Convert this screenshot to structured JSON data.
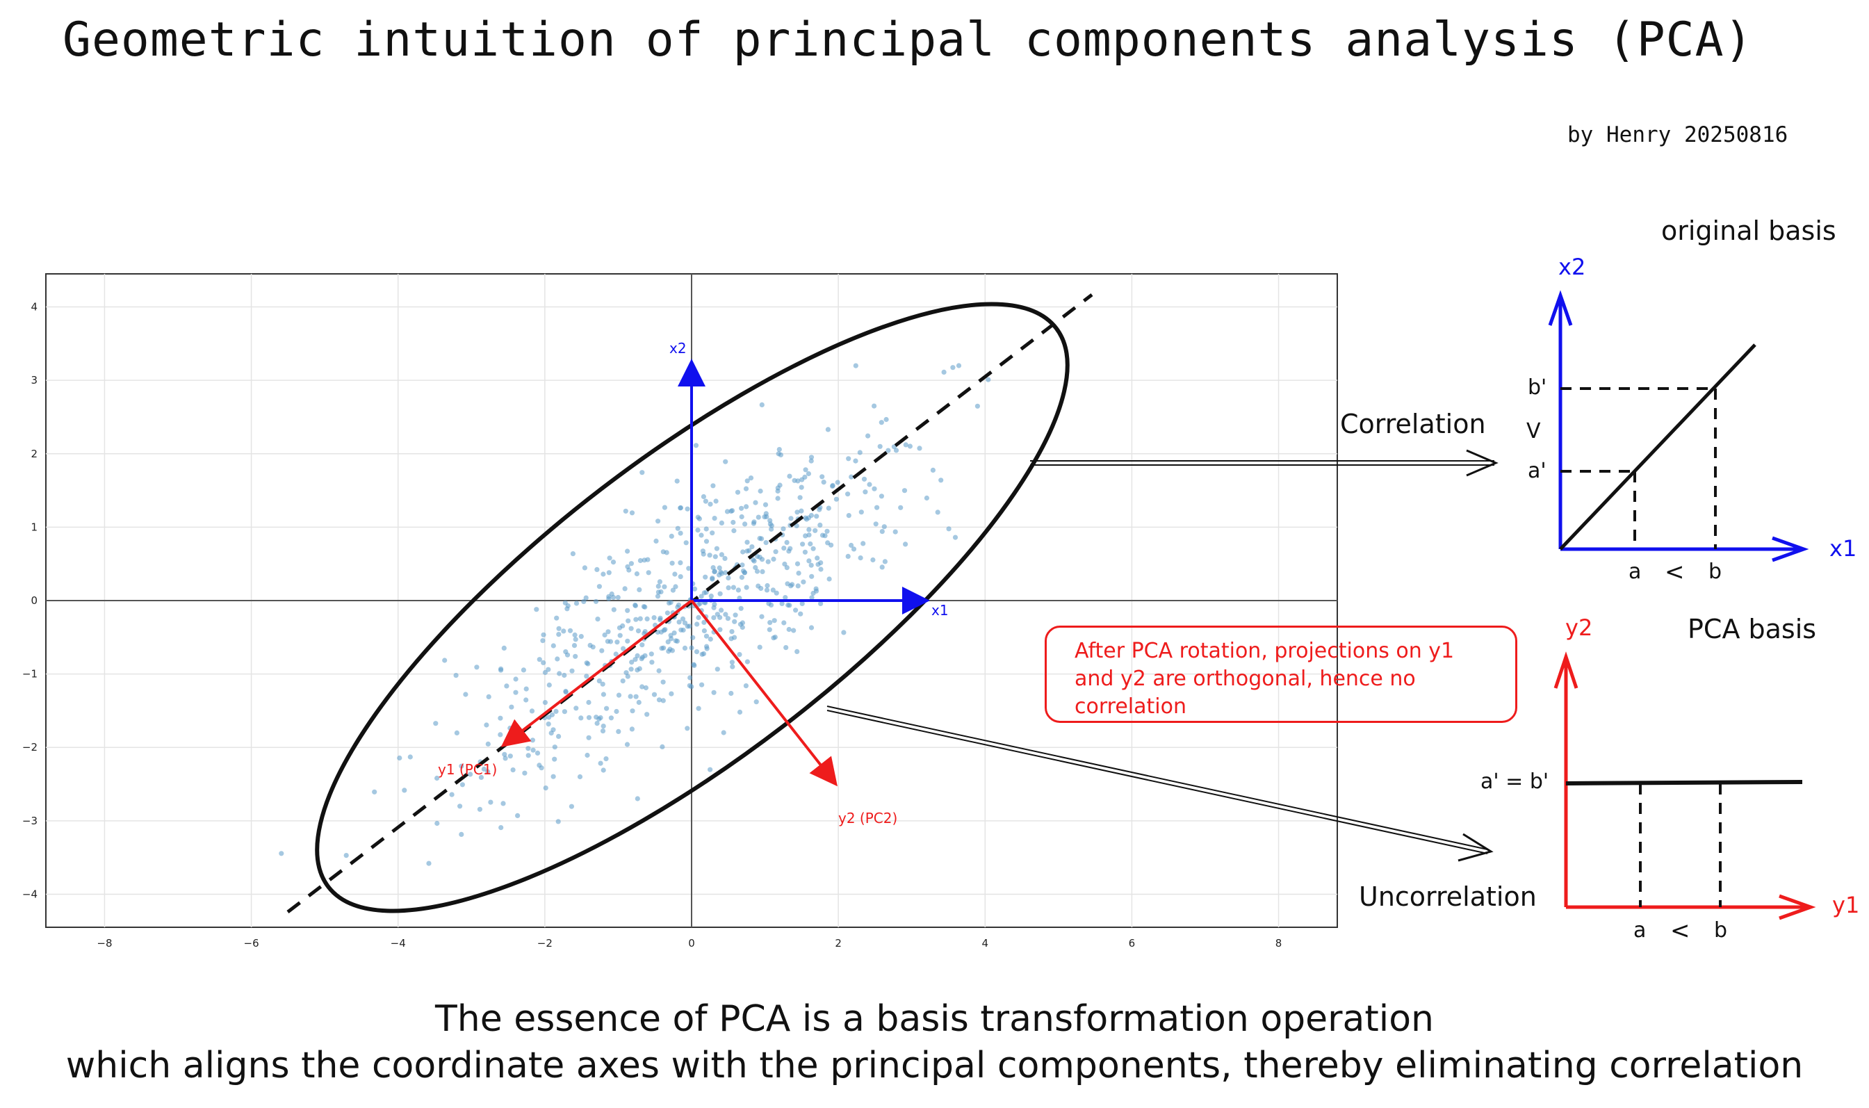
{
  "header": {
    "title": "Geometric intuition of principal components analysis (PCA)",
    "author": "by Henry 20250816"
  },
  "scatter": {
    "x_ticks": [
      "−8",
      "−6",
      "−4",
      "−2",
      "0",
      "2",
      "4",
      "6",
      "8"
    ],
    "y_ticks": [
      "4",
      "3",
      "2",
      "1",
      "0",
      "−1",
      "−2",
      "−3",
      "−4"
    ],
    "xlim": [
      -8.8,
      8.8
    ],
    "ylim": [
      -4.45,
      4.45
    ],
    "grid": true,
    "x1_label": "x1",
    "x2_label": "x2",
    "y1_label": "y1 (PC1)",
    "y2_label": "y2 (PC2)",
    "point_color": "#5b9ac9",
    "basis_color": "#1010ee",
    "pc_color": "#ee1c1c"
  },
  "annotations": {
    "correlation": "Correlation",
    "uncorrelation": "Uncorrelation",
    "note": "After PCA rotation, projections on y1 and y2 are orthogonal, hence no correlation"
  },
  "original_basis": {
    "title": "original basis",
    "x_axis": "x1",
    "y_axis": "x2",
    "a": "a",
    "b": "b",
    "a_prime": "a'",
    "b_prime": "b'",
    "lt": "<",
    "vee": "V"
  },
  "pca_basis": {
    "title": "PCA basis",
    "x_axis": "y1",
    "y_axis": "y2",
    "a": "a",
    "b": "b",
    "equal_label": "a' = b'",
    "lt": "<"
  },
  "footer": {
    "line1": "The essence of PCA is a basis transformation operation",
    "line2": "which aligns the coordinate axes with the principal components, thereby eliminating correlation"
  }
}
